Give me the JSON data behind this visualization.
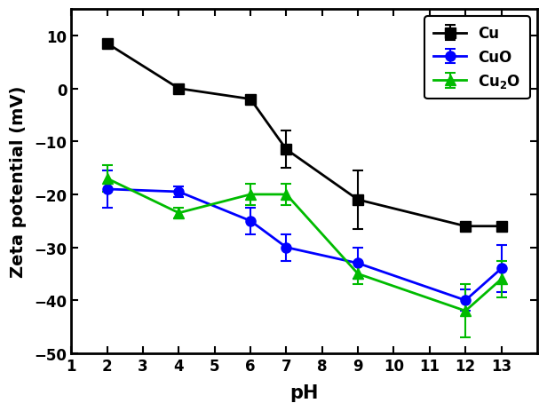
{
  "Cu": {
    "x": [
      2,
      4,
      6,
      7,
      9,
      12,
      13
    ],
    "y": [
      8.5,
      0.0,
      -2.0,
      -11.5,
      -21.0,
      -26.0,
      -26.0
    ],
    "yerr": [
      0,
      0,
      0,
      3.5,
      5.5,
      0,
      0
    ],
    "color": "#000000",
    "marker": "s",
    "label": "Cu"
  },
  "CuO": {
    "x": [
      2,
      4,
      6,
      7,
      9,
      12,
      13
    ],
    "y": [
      -19.0,
      -19.5,
      -25.0,
      -30.0,
      -33.0,
      -40.0,
      -34.0
    ],
    "yerr": [
      3.5,
      1.0,
      2.5,
      2.5,
      3.0,
      2.0,
      4.5
    ],
    "color": "#0000FF",
    "marker": "o",
    "label": "CuO"
  },
  "Cu2O": {
    "x": [
      2,
      4,
      6,
      7,
      9,
      12,
      13
    ],
    "y": [
      -17.0,
      -23.5,
      -20.0,
      -20.0,
      -35.0,
      -42.0,
      -36.0
    ],
    "yerr": [
      2.5,
      1.0,
      2.0,
      2.0,
      2.0,
      5.0,
      3.5
    ],
    "color": "#00BB00",
    "marker": "^",
    "label": "Cu$_2$O"
  },
  "xlim": [
    1,
    14
  ],
  "ylim": [
    -50,
    15
  ],
  "xticks": [
    1,
    2,
    3,
    4,
    5,
    6,
    7,
    8,
    9,
    10,
    11,
    12,
    13
  ],
  "yticks": [
    -50,
    -40,
    -30,
    -20,
    -10,
    0,
    10
  ],
  "xlabel": "pH",
  "ylabel": "Zeta potential (mV)",
  "figsize": [
    6.16,
    4.64
  ],
  "dpi": 100,
  "bg_color": "#FFFFFF"
}
